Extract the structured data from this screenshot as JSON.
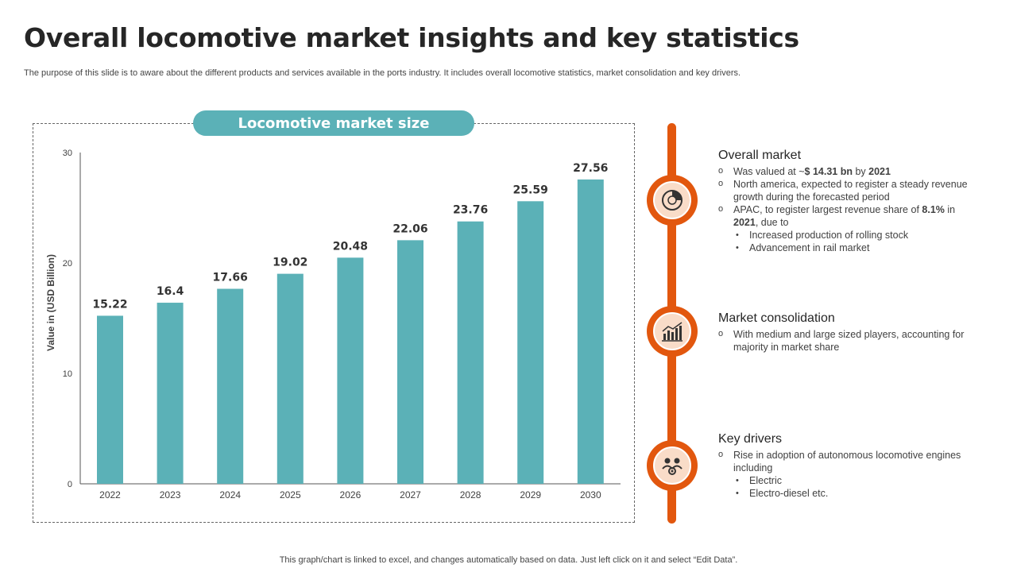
{
  "page": {
    "title": "Overall locomotive market insights and key statistics",
    "subtitle": "The purpose of this slide is to aware about the different products and services available in the ports industry. It includes overall locomotive statistics, market consolidation and key drivers.",
    "footer": "This graph/chart is linked to excel, and changes automatically based on data. Just left click on it and select “Edit Data”."
  },
  "chart_header": "Locomotive market size",
  "chart_data": {
    "type": "bar",
    "categories": [
      "2022",
      "2023",
      "2024",
      "2025",
      "2026",
      "2027",
      "2028",
      "2029",
      "2030"
    ],
    "values": [
      15.22,
      16.4,
      17.66,
      19.02,
      20.48,
      22.06,
      23.76,
      25.59,
      27.56
    ],
    "data_labels": [
      "15.22",
      "16.4",
      "17.66",
      "19.02",
      "20.48",
      "22.06",
      "23.76",
      "25.59",
      "27.56"
    ],
    "title": "Locomotive market size",
    "xlabel": "",
    "ylabel": "Value in (USD Billion)",
    "ylim": [
      0,
      30
    ],
    "yticks": [
      0,
      10,
      20,
      30
    ],
    "grid": false,
    "legend": "none",
    "bar_color": "#5bb1b7"
  },
  "sections": {
    "overall": {
      "heading": "Overall market",
      "b1_prefix": "Was valued at  ~",
      "b1_bold": "$ 14.31 bn",
      "b1_mid": " by ",
      "b1_bold2": "2021",
      "b2": "North america, expected to register a steady revenue growth during the forecasted period",
      "b3_prefix": "APAC, to register largest revenue share of ",
      "b3_bold": "8.1%",
      "b3_mid": " in ",
      "b3_bold2": "2021",
      "b3_suffix": ", due to",
      "sub1": "Increased production of rolling stock",
      "sub2": "Advancement in rail market"
    },
    "consolidation": {
      "heading": "Market consolidation",
      "b1": "With medium and large sized players, accounting for majority in market share"
    },
    "drivers": {
      "heading": "Key drivers",
      "b1": "Rise in adoption of autonomous locomotive engines including",
      "sub1": "Electric",
      "sub2": "Electro-diesel etc."
    }
  },
  "icons": {
    "overall": "pie-chart-icon",
    "consolidation": "bar-growth-icon",
    "drivers": "team-gear-icon"
  },
  "colors": {
    "accent": "#e2570e",
    "teal": "#5bb1b7",
    "node_fill": "#f9dcc8"
  }
}
